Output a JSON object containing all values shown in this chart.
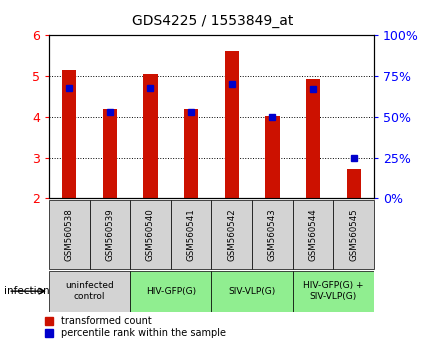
{
  "title": "GDS4225 / 1553849_at",
  "samples": [
    "GSM560538",
    "GSM560539",
    "GSM560540",
    "GSM560541",
    "GSM560542",
    "GSM560543",
    "GSM560544",
    "GSM560545"
  ],
  "bar_values": [
    5.15,
    4.2,
    5.05,
    4.2,
    5.62,
    4.02,
    4.93,
    2.72
  ],
  "percentile_ranks": [
    68,
    53,
    68,
    53,
    70,
    50,
    67,
    25
  ],
  "bar_color": "#CC1100",
  "percentile_color": "#0000CC",
  "ylim_left": [
    2,
    6
  ],
  "ylim_right": [
    0,
    100
  ],
  "yticks_left": [
    2,
    3,
    4,
    5,
    6
  ],
  "yticks_right": [
    0,
    25,
    50,
    75,
    100
  ],
  "infection_groups": [
    {
      "label": "uninfected\ncontrol",
      "start": 0,
      "end": 1,
      "color": "#d3d3d3"
    },
    {
      "label": "HIV-GFP(G)",
      "start": 2,
      "end": 3,
      "color": "#90EE90"
    },
    {
      "label": "SIV-VLP(G)",
      "start": 4,
      "end": 5,
      "color": "#90EE90"
    },
    {
      "label": "HIV-GFP(G) +\nSIV-VLP(G)",
      "start": 6,
      "end": 7,
      "color": "#90EE90"
    }
  ],
  "legend_items": [
    {
      "label": "transformed count",
      "color": "#CC1100"
    },
    {
      "label": "percentile rank within the sample",
      "color": "#0000CC"
    }
  ],
  "infection_label": "infection",
  "bar_width": 0.35,
  "fig_width": 4.25,
  "fig_height": 3.54,
  "dpi": 100
}
